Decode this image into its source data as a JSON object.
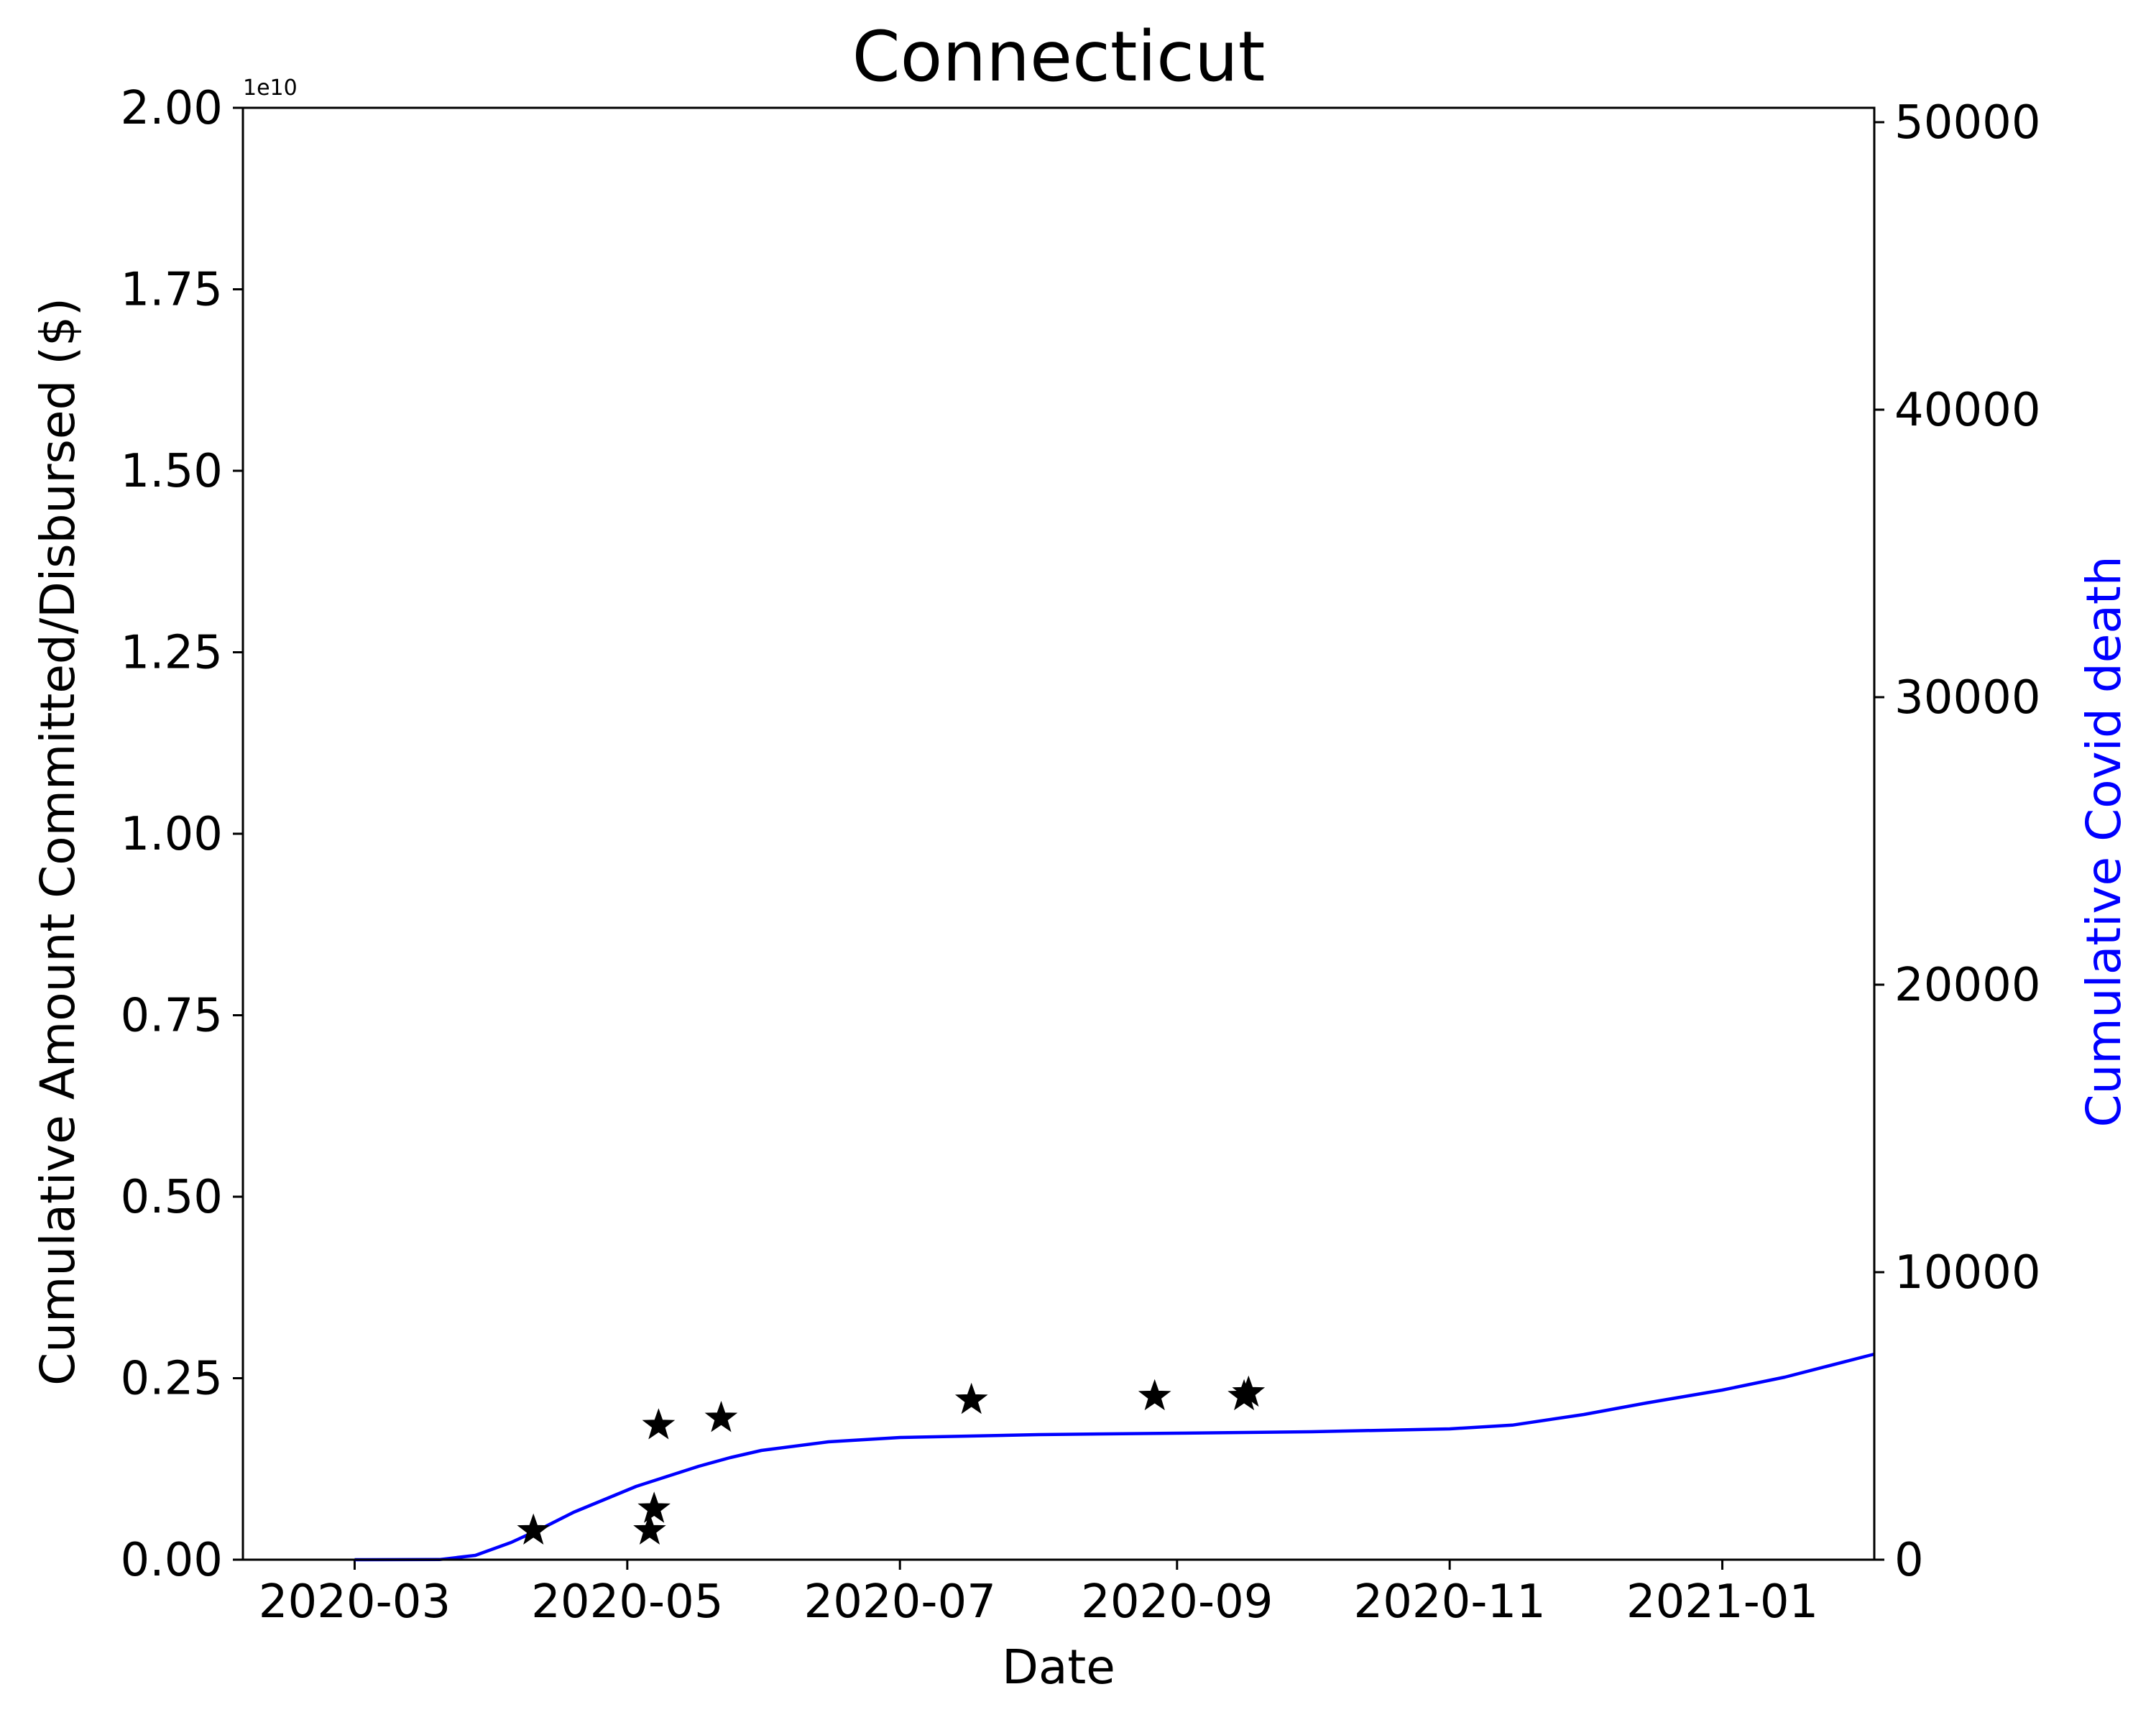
{
  "chart_data": {
    "type": "line",
    "title": "Connecticut",
    "xlabel": "Date",
    "ylabel": "Cumulative Amount Committed/Disbursed ($)",
    "y2label": "Cumulative Covid death",
    "y_offset_label": "1e10",
    "x_range": [
      "2020-02-05",
      "2021-02-04"
    ],
    "x_ticks": [
      "2020-03-01",
      "2020-05-01",
      "2020-07-01",
      "2020-09-01",
      "2020-11-01",
      "2021-01-01"
    ],
    "x_tick_labels": [
      "2020-03",
      "2020-05",
      "2020-07",
      "2020-09",
      "2020-11",
      "2021-01"
    ],
    "ylim": [
      0,
      2.0
    ],
    "y_ticks": [
      0,
      0.25,
      0.5,
      0.75,
      1.0,
      1.25,
      1.5,
      1.75,
      2.0
    ],
    "y_tick_labels": [
      "0.00",
      "0.25",
      "0.50",
      "0.75",
      "1.00",
      "1.25",
      "1.50",
      "1.75",
      "2.00"
    ],
    "y2lim": [
      0,
      50500
    ],
    "y2_ticks": [
      0,
      10000,
      20000,
      30000,
      40000,
      50000
    ],
    "y2_tick_labels": [
      "0",
      "10000",
      "20000",
      "30000",
      "40000",
      "50000"
    ],
    "grid": false,
    "colors": {
      "deaths_line": "#0000ff",
      "markers": "#000000",
      "axes": "#000000"
    },
    "series": [
      {
        "axis": "right",
        "kind": "line",
        "color": "#0000ff",
        "x": [
          "2020-03-01",
          "2020-03-20",
          "2020-03-28",
          "2020-04-05",
          "2020-04-12",
          "2020-04-19",
          "2020-04-26",
          "2020-05-03",
          "2020-05-10",
          "2020-05-17",
          "2020-05-24",
          "2020-05-31",
          "2020-06-15",
          "2020-07-01",
          "2020-08-01",
          "2020-09-01",
          "2020-10-01",
          "2020-11-01",
          "2020-11-15",
          "2020-12-01",
          "2020-12-15",
          "2021-01-01",
          "2021-01-15",
          "2021-02-04"
        ],
        "y": [
          0,
          5,
          150,
          600,
          1100,
          1650,
          2100,
          2550,
          2900,
          3250,
          3550,
          3800,
          4100,
          4250,
          4350,
          4400,
          4450,
          4550,
          4680,
          5050,
          5450,
          5900,
          6350,
          7150
        ]
      },
      {
        "axis": "left",
        "kind": "scatter",
        "marker": "star",
        "color": "#000000",
        "x": [
          "2020-04-10",
          "2020-05-06",
          "2020-05-07",
          "2020-05-08",
          "2020-05-22",
          "2020-07-17",
          "2020-08-27",
          "2020-09-16",
          "2020-09-17"
        ],
        "y": [
          0.04,
          0.04,
          0.07,
          0.185,
          0.195,
          0.22,
          0.225,
          0.225,
          0.23
        ]
      }
    ]
  }
}
